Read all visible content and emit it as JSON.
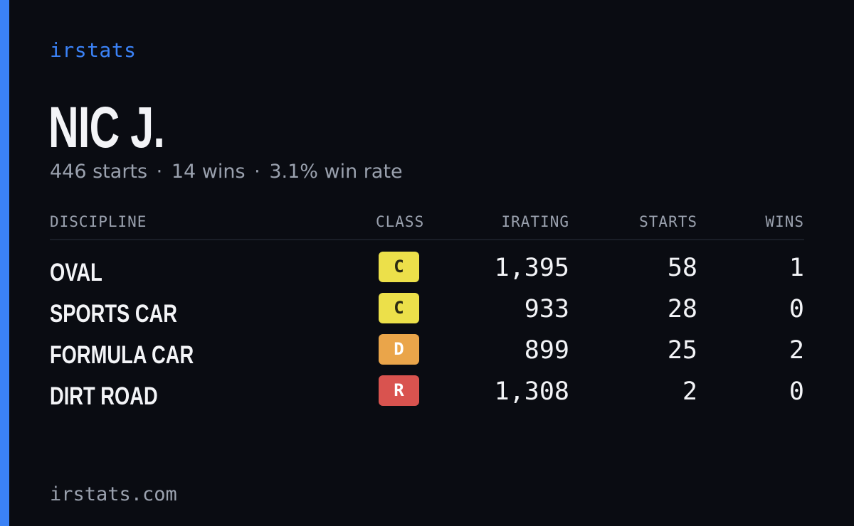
{
  "brand": "irstats",
  "driver": {
    "name": "NIC J.",
    "starts": "446 starts",
    "wins": "14 wins",
    "win_rate": "3.1% win rate",
    "separator": "·"
  },
  "table": {
    "headers": {
      "discipline": "DISCIPLINE",
      "class": "CLASS",
      "irating": "IRATING",
      "starts": "STARTS",
      "wins": "WINS"
    },
    "rows": [
      {
        "discipline": "OVAL",
        "class": "C",
        "irating": "1,395",
        "starts": "58",
        "wins": "1"
      },
      {
        "discipline": "SPORTS CAR",
        "class": "C",
        "irating": "933",
        "starts": "28",
        "wins": "0"
      },
      {
        "discipline": "FORMULA CAR",
        "class": "D",
        "irating": "899",
        "starts": "25",
        "wins": "2"
      },
      {
        "discipline": "DIRT ROAD",
        "class": "R",
        "irating": "1,308",
        "starts": "2",
        "wins": "0"
      }
    ]
  },
  "footer": "irstats.com",
  "colors": {
    "accent": "#3b82f6",
    "background": "#0a0c12",
    "class_c": "#ece04a",
    "class_d": "#eaa54a",
    "class_r": "#d9534f"
  }
}
